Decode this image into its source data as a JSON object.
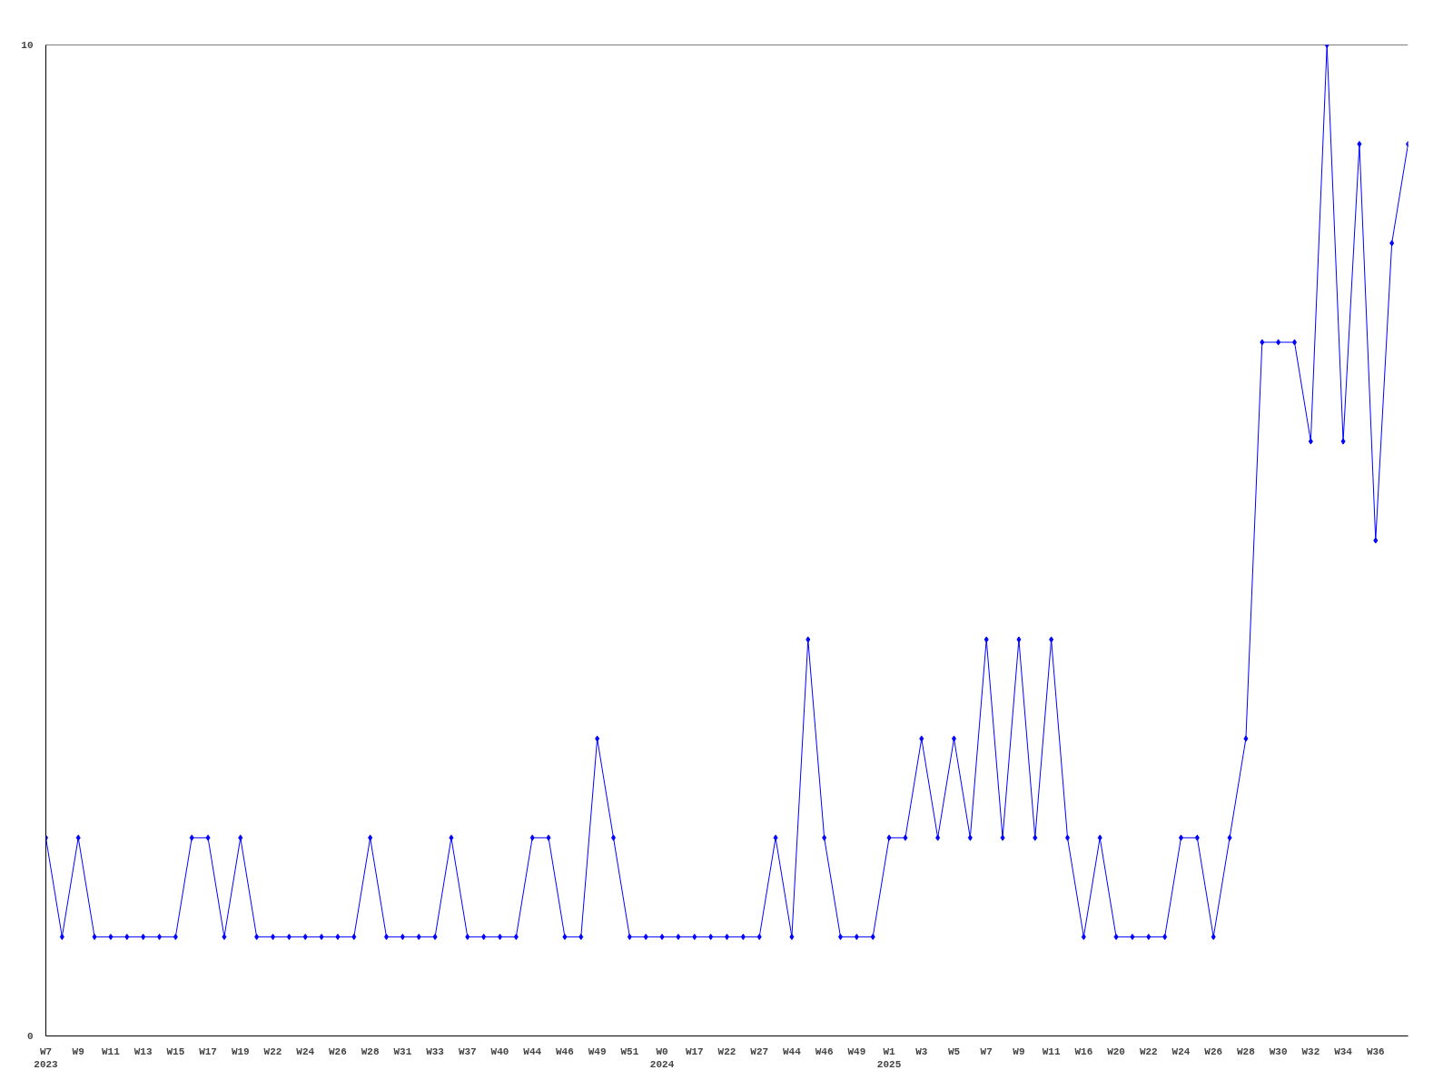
{
  "chart_data": {
    "type": "line",
    "categories": [
      "W7\n2023",
      null,
      "W9",
      null,
      "W11",
      null,
      "W13",
      null,
      "W15",
      null,
      "W17",
      null,
      "W19",
      null,
      "W22",
      null,
      "W24",
      null,
      "W26",
      null,
      "W28",
      null,
      "W31",
      null,
      "W33",
      null,
      "W37",
      null,
      "W40",
      null,
      "W44",
      null,
      "W46",
      null,
      "W49",
      null,
      "W51",
      null,
      "W0\n2024",
      null,
      "W17",
      null,
      "W22",
      null,
      "W27",
      null,
      "W44",
      null,
      "W46",
      null,
      "W49",
      null,
      "W1\n2025",
      null,
      "W3",
      null,
      "W5",
      null,
      "W7",
      null,
      "W9",
      null,
      "W11",
      null,
      "W16",
      null,
      "W20",
      null,
      "W22",
      null,
      "W24",
      null,
      "W26",
      null,
      "W28",
      null,
      "W30",
      null,
      "W32",
      null,
      "W34",
      null,
      "W36",
      null,
      null
    ],
    "series": [
      {
        "color": "#0000ff",
        "values": [
          2,
          1,
          2,
          1,
          1,
          1,
          1,
          1,
          1,
          2,
          2,
          1,
          2,
          1,
          1,
          1,
          1,
          1,
          1,
          1,
          2,
          1,
          1,
          1,
          1,
          2,
          1,
          1,
          1,
          1,
          2,
          2,
          1,
          1,
          3,
          2,
          1,
          1,
          1,
          1,
          1,
          1,
          1,
          1,
          1,
          2,
          1,
          4,
          2,
          1,
          1,
          1,
          2,
          2,
          3,
          2,
          3,
          2,
          4,
          2,
          4,
          2,
          4,
          2,
          1,
          2,
          1,
          1,
          1,
          1,
          2,
          2,
          1,
          2,
          3,
          7,
          7,
          7,
          6,
          10,
          6,
          9,
          5,
          8,
          9
        ]
      }
    ],
    "ylim": [
      0,
      10
    ],
    "yticks": [
      0,
      10
    ],
    "grid": false,
    "marker": "diamond",
    "line_style": "solid"
  }
}
